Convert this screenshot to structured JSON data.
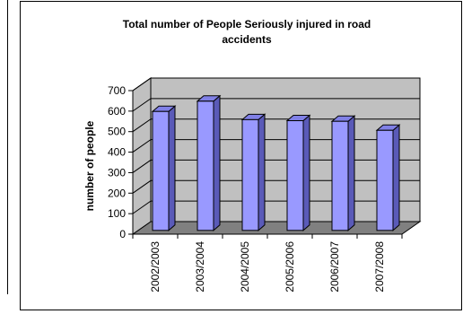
{
  "chart_data": {
    "type": "bar",
    "title": "Total number of People Seriously injured in road accidents",
    "title_lines": [
      "Total number of People Seriously injured in road",
      "accidents"
    ],
    "xlabel": "",
    "ylabel": "number of people",
    "categories": [
      "2002/2003",
      "2003/2004",
      "2004/2005",
      "2005/2006",
      "2006/2007",
      "2007/2008"
    ],
    "values": [
      580,
      630,
      540,
      535,
      532,
      488
    ],
    "ylim": [
      0,
      700
    ],
    "yticks": [
      "0",
      "100",
      "200",
      "300",
      "400",
      "500",
      "600",
      "700"
    ],
    "grid": true,
    "three_d": true,
    "bar_color": "#9999ff",
    "bar_side_color": "#5a5ab8",
    "bar_top_color": "#8080e6",
    "wall_color": "#c0c0c0",
    "floor_color": "#808080"
  }
}
